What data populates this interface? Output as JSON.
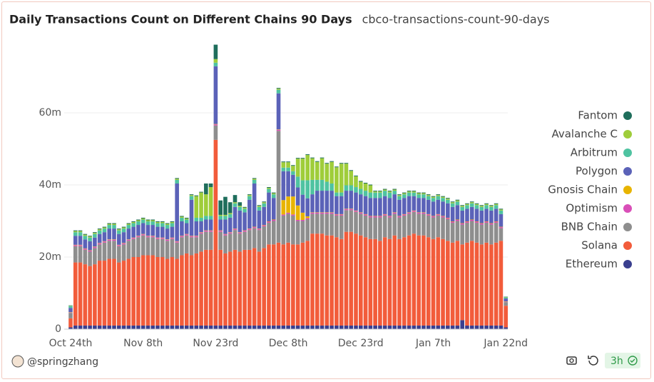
{
  "chart_data": {
    "type": "stacked_bar",
    "title": "Daily Transactions Count on Different Chains 90 Days",
    "subtitle": "cbco-transactions-count-90-days",
    "categories": [
      "Oct 24th",
      null,
      null,
      null,
      null,
      null,
      null,
      null,
      null,
      null,
      null,
      null,
      null,
      null,
      null,
      "Nov 8th",
      null,
      null,
      null,
      null,
      null,
      null,
      null,
      null,
      null,
      null,
      null,
      null,
      null,
      null,
      "Nov 23rd",
      null,
      null,
      null,
      null,
      null,
      null,
      null,
      null,
      null,
      null,
      null,
      null,
      null,
      null,
      "Dec 8th",
      null,
      null,
      null,
      null,
      null,
      null,
      null,
      null,
      null,
      null,
      null,
      null,
      null,
      null,
      "Dec 23rd",
      null,
      null,
      null,
      null,
      null,
      null,
      null,
      null,
      null,
      null,
      null,
      null,
      null,
      null,
      "Jan 7th",
      null,
      null,
      null,
      null,
      null,
      null,
      null,
      null,
      null,
      null,
      null,
      null,
      null,
      null,
      "Jan 22nd"
    ],
    "ylim": [
      0,
      80
    ],
    "yticks": [
      0,
      {
        "value": 20,
        "label": "20m"
      },
      {
        "value": 40,
        "label": "40m"
      },
      {
        "value": 60,
        "label": "60m"
      }
    ],
    "grid": true,
    "legend": "right",
    "series": [
      {
        "name": "Ethereum",
        "color": "#3a3f8f",
        "values": [
          0.5,
          1,
          1,
          1,
          1,
          1,
          1,
          1,
          1,
          1,
          1,
          1,
          1,
          1,
          1,
          1,
          1,
          1,
          1,
          1,
          1,
          1,
          1,
          1,
          1,
          1,
          1,
          1,
          1,
          1,
          1,
          1,
          1,
          1,
          1,
          1,
          1,
          1,
          1,
          1,
          1,
          1,
          1,
          1,
          1,
          1,
          1,
          1,
          1,
          1,
          1,
          1,
          1,
          1,
          1,
          1,
          1,
          1,
          1,
          1,
          1,
          1,
          1,
          1,
          1,
          1,
          1,
          1,
          1,
          1,
          1,
          1,
          1,
          1,
          1,
          1,
          1,
          1,
          1,
          1,
          1,
          2.5,
          1,
          1,
          1,
          1,
          1,
          1,
          1,
          1,
          0.5
        ]
      },
      {
        "name": "Solana",
        "color": "#f25c3b",
        "values": [
          2.5,
          17.5,
          17.5,
          17,
          16.5,
          17,
          18,
          18,
          18.5,
          18.5,
          17.5,
          18,
          18.5,
          19,
          19,
          19.5,
          19.5,
          19.5,
          19,
          19,
          18.5,
          19,
          18.5,
          19.5,
          20,
          19.5,
          20,
          20.5,
          21,
          21,
          51.5,
          21,
          20,
          20.5,
          21,
          20.5,
          21,
          21,
          21.5,
          20.5,
          21.5,
          22.5,
          22.5,
          23,
          22.5,
          23,
          22.5,
          22.5,
          23,
          23.5,
          25.5,
          25.5,
          25.5,
          25,
          25,
          24.5,
          24,
          26,
          26,
          25.5,
          25,
          24.5,
          24,
          24,
          23.5,
          24.5,
          24,
          25,
          24,
          24.5,
          25,
          25.5,
          25,
          25,
          24.5,
          24,
          24.5,
          24,
          23.5,
          23,
          23.5,
          21,
          23,
          23.5,
          23,
          22.5,
          23,
          22.5,
          23,
          23.5,
          6
        ]
      },
      {
        "name": "BNB Chain",
        "color": "#8e8e8e",
        "values": [
          1.5,
          4.5,
          4.5,
          4,
          4,
          4.5,
          4.5,
          5,
          5,
          5,
          4.5,
          4.5,
          5,
          5,
          5.5,
          5.5,
          5,
          5,
          5,
          5,
          5,
          5,
          4.5,
          5,
          5,
          5,
          4.5,
          5,
          5,
          5,
          4,
          5,
          5,
          5,
          5.5,
          5,
          5,
          5.5,
          5.5,
          6,
          6,
          6,
          6.5,
          31,
          8,
          8,
          8,
          6.5,
          6,
          6,
          5.5,
          5.5,
          5.5,
          6,
          6,
          6,
          6.5,
          6,
          6,
          6,
          6,
          6,
          6,
          6,
          6.5,
          6,
          6,
          6,
          6,
          6,
          6,
          6,
          6,
          6,
          6,
          6,
          6,
          6,
          6,
          5.5,
          5.5,
          5.5,
          5.5,
          5.5,
          5.5,
          5.5,
          5.5,
          5.5,
          5.5,
          3.5,
          1
        ]
      },
      {
        "name": "Optimism",
        "color": "#d94fb8",
        "values": [
          0.1,
          0.3,
          0.3,
          0.3,
          0.3,
          0.3,
          0.3,
          0.3,
          0.3,
          0.3,
          0.3,
          0.3,
          0.3,
          0.3,
          0.3,
          0.3,
          0.3,
          0.3,
          0.3,
          0.3,
          0.3,
          0.3,
          0.3,
          0.3,
          0.3,
          0.3,
          0.3,
          0.3,
          0.3,
          0.3,
          0.3,
          0.3,
          0.3,
          0.3,
          0.3,
          0.3,
          0.3,
          0.3,
          0.3,
          0.3,
          0.3,
          0.3,
          0.3,
          0.3,
          0.3,
          0.3,
          0.3,
          0.3,
          0.3,
          0.3,
          0.3,
          0.3,
          0.3,
          0.3,
          0.3,
          0.3,
          0.3,
          0.3,
          0.3,
          0.3,
          0.3,
          0.3,
          0.3,
          0.3,
          0.3,
          0.3,
          0.3,
          0.3,
          0.3,
          0.3,
          0.3,
          0.3,
          0.3,
          0.3,
          0.3,
          0.3,
          0.3,
          0.3,
          0.3,
          0.3,
          0.3,
          0.3,
          0.3,
          0.3,
          0.3,
          0.3,
          0.3,
          0.3,
          0.3,
          0.3,
          0.1
        ]
      },
      {
        "name": "Gnosis Chain",
        "color": "#e8b400",
        "values": [
          0.1,
          0.1,
          0.1,
          0.1,
          0.1,
          0.1,
          0.1,
          0.1,
          0.1,
          0.1,
          0.1,
          0.1,
          0.1,
          0.1,
          0.1,
          0.1,
          0.1,
          0.1,
          0.1,
          0.1,
          0.1,
          0.1,
          0.1,
          0.1,
          0.1,
          0.1,
          0.1,
          0.1,
          0.1,
          0.1,
          0.1,
          0.1,
          0.1,
          0.1,
          0.1,
          0.1,
          0.1,
          0.1,
          0.1,
          0.1,
          0.1,
          0.1,
          0.1,
          0.1,
          4,
          4.5,
          5,
          4,
          2,
          0.5,
          0.1,
          0.1,
          0.1,
          0.1,
          0.1,
          0.1,
          0.1,
          0.1,
          0.1,
          0.1,
          0.1,
          0.1,
          0.1,
          0.1,
          0.1,
          0.1,
          0.1,
          0.1,
          0.1,
          0.1,
          0.1,
          0.1,
          0.1,
          0.1,
          0.1,
          0.1,
          0.1,
          0.1,
          0.1,
          0.1,
          0.1,
          0.1,
          0.1,
          0.1,
          0.1,
          0.1,
          0.1,
          0.1,
          0.1,
          0.1,
          0.1
        ]
      },
      {
        "name": "Polygon",
        "color": "#5b62b8",
        "values": [
          1.2,
          2.5,
          2.5,
          2.5,
          2.5,
          2.5,
          2.5,
          2.5,
          3,
          3,
          3,
          3,
          3,
          3,
          3,
          3,
          3,
          3,
          3,
          3,
          3,
          3,
          16,
          4,
          3,
          10,
          4,
          3,
          3,
          3,
          16,
          3,
          4,
          4,
          6,
          6,
          5,
          8,
          12,
          5,
          5,
          8,
          6,
          10,
          8,
          7,
          6,
          5,
          5,
          5,
          5,
          6,
          6,
          6,
          6,
          5,
          5,
          5,
          5,
          5,
          5,
          5,
          5,
          5,
          5,
          5,
          5,
          5,
          4.5,
          4.5,
          4.5,
          4,
          4,
          4,
          4,
          4,
          4,
          4,
          4,
          4,
          4,
          3.5,
          3.5,
          3.5,
          3.5,
          3.5,
          3.5,
          3.5,
          3.5,
          3.5,
          0.8
        ]
      },
      {
        "name": "Arbitrum",
        "color": "#4fc3a1",
        "values": [
          0.5,
          1,
          1,
          1,
          1,
          1,
          1,
          1,
          1,
          1,
          1,
          1,
          1,
          1,
          1,
          1,
          1,
          1,
          1,
          1,
          1,
          1,
          1,
          1,
          1,
          1,
          1,
          1,
          1,
          1,
          1,
          1,
          1,
          1,
          1,
          1,
          1,
          1,
          1,
          1,
          1,
          1,
          1,
          1,
          1,
          1,
          1,
          3,
          4,
          5,
          4,
          3,
          3,
          2.5,
          2,
          1,
          1,
          1.5,
          1.5,
          1.5,
          1.5,
          1.5,
          1.5,
          1.5,
          1.5,
          1.5,
          1.5,
          1,
          1,
          1,
          1,
          1,
          1,
          1,
          1,
          1,
          1,
          1,
          1,
          1,
          1,
          1,
          1,
          1,
          1,
          1,
          1,
          1,
          1,
          1,
          0.3
        ]
      },
      {
        "name": "Avalanche C",
        "color": "#9fcd3a",
        "values": [
          0.1,
          0.3,
          0.3,
          0.3,
          0.3,
          0.3,
          0.3,
          0.3,
          0.3,
          0.3,
          0.3,
          0.3,
          0.3,
          0.3,
          0.3,
          0.3,
          0.3,
          0.3,
          0.3,
          0.3,
          0.3,
          0.3,
          0.3,
          0.3,
          0.3,
          0.3,
          6,
          7,
          6,
          8,
          1,
          0.3,
          0.3,
          0.3,
          0.3,
          0.3,
          0.3,
          0.3,
          0.3,
          0.3,
          0.3,
          0.3,
          0.3,
          0.3,
          1.5,
          1.5,
          1.5,
          5,
          6,
          7,
          6,
          5,
          6,
          5,
          6,
          7,
          8,
          6,
          4,
          3,
          2,
          2,
          2,
          0.3,
          0.3,
          0.3,
          0.3,
          0.3,
          0.3,
          0.3,
          0.3,
          0.3,
          0.3,
          0.3,
          0.3,
          0.3,
          0.3,
          0.3,
          0.3,
          0.3,
          0.3,
          0.3,
          0.3,
          0.3,
          0.3,
          0.3,
          0.3,
          0.3,
          0.3,
          0.3,
          0.1
        ]
      },
      {
        "name": "Fantom",
        "color": "#1f6e5c",
        "values": [
          0.1,
          0.2,
          0.2,
          0.2,
          0.2,
          0.2,
          0.2,
          0.2,
          0.2,
          0.2,
          0.2,
          0.2,
          0.2,
          0.2,
          0.2,
          0.2,
          0.2,
          0.2,
          0.2,
          0.2,
          0.2,
          0.2,
          0.2,
          0.2,
          0.2,
          0.2,
          0.2,
          0.2,
          3,
          1,
          4,
          4,
          5,
          3,
          2,
          1,
          0.2,
          0.2,
          0.2,
          0.2,
          0.2,
          0.2,
          0.2,
          0.2,
          0.2,
          0.2,
          0.2,
          0.2,
          0.2,
          0.2,
          0.2,
          0.2,
          0.2,
          0.2,
          0.2,
          0.2,
          0.2,
          0.2,
          0.2,
          0.2,
          0.2,
          0.2,
          0.2,
          0.2,
          0.2,
          0.2,
          0.2,
          0.2,
          0.2,
          0.2,
          0.2,
          0.2,
          0.2,
          0.2,
          0.2,
          0.2,
          0.2,
          0.2,
          0.2,
          0.2,
          0.2,
          0.2,
          0.2,
          0.2,
          0.2,
          0.2,
          0.2,
          0.2,
          0.2,
          0.2,
          0.1
        ]
      }
    ]
  },
  "footer": {
    "author": "@springzhang",
    "age": "3h"
  }
}
